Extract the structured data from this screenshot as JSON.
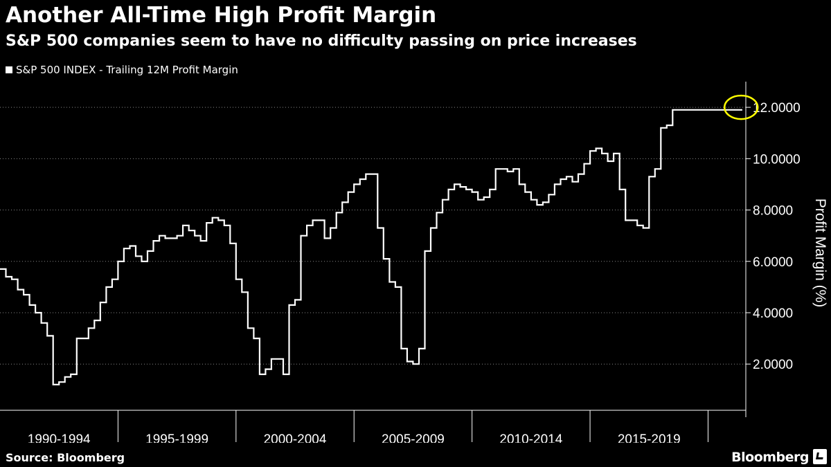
{
  "header": {
    "title": "Another All-Time High Profit Margin",
    "subtitle": "S&P 500 companies seem to have no difficulty passing on price increases"
  },
  "footer": {
    "source": "Source: Bloomberg",
    "brand": "Bloomberg"
  },
  "colors": {
    "background": "#000000",
    "line": "#ffffff",
    "highlight_circle": "#ffff00"
  },
  "chart_data": {
    "type": "line",
    "title": "Another All-Time High Profit Margin",
    "subtitle": "S&P 500 companies seem to have no difficulty passing on price increases",
    "ylabel": "Profit Margin (%)",
    "xlabel": "",
    "ylim": [
      0.2,
      13.0
    ],
    "yticks": [
      2,
      4,
      6,
      8,
      10,
      12
    ],
    "ytick_labels": [
      "2.0000",
      "4.0000",
      "6.0000",
      "8.0000",
      "10.0000",
      "12.0000"
    ],
    "xlim": [
      1990.0,
      2021.6
    ],
    "categories": [
      "1990-1994",
      "1995-1999",
      "2000-2004",
      "2005-2009",
      "2010-2014",
      "2015-2019"
    ],
    "category_bounds": [
      [
        1990,
        1995
      ],
      [
        1995,
        2000
      ],
      [
        2000,
        2005
      ],
      [
        2005,
        2010
      ],
      [
        2010,
        2015
      ],
      [
        2015,
        2020
      ]
    ],
    "annotation": {
      "type": "circle",
      "x": 2021.4,
      "y": 12.0,
      "note": "all-time high"
    },
    "grid": "horizontal-dotted",
    "legend_position": "top-left",
    "series": [
      {
        "name": "S&P 500 INDEX - Trailing 12M Profit Margin",
        "x": [
          1990.0,
          1990.25,
          1990.5,
          1990.75,
          1991.0,
          1991.25,
          1991.5,
          1991.75,
          1992.0,
          1992.25,
          1992.5,
          1992.75,
          1993.0,
          1993.25,
          1993.5,
          1993.75,
          1994.0,
          1994.25,
          1994.5,
          1994.75,
          1995.0,
          1995.25,
          1995.5,
          1995.75,
          1996.0,
          1996.25,
          1996.5,
          1996.75,
          1997.0,
          1997.25,
          1997.5,
          1997.75,
          1998.0,
          1998.25,
          1998.5,
          1998.75,
          1999.0,
          1999.25,
          1999.5,
          1999.75,
          2000.0,
          2000.25,
          2000.5,
          2000.75,
          2001.0,
          2001.25,
          2001.5,
          2001.75,
          2002.0,
          2002.25,
          2002.5,
          2002.75,
          2003.0,
          2003.25,
          2003.5,
          2003.75,
          2004.0,
          2004.25,
          2004.5,
          2004.75,
          2005.0,
          2005.25,
          2005.5,
          2005.75,
          2006.0,
          2006.25,
          2006.5,
          2006.75,
          2007.0,
          2007.25,
          2007.5,
          2007.75,
          2008.0,
          2008.25,
          2008.5,
          2008.75,
          2009.0,
          2009.25,
          2009.5,
          2009.75,
          2010.0,
          2010.25,
          2010.5,
          2010.75,
          2011.0,
          2011.25,
          2011.5,
          2011.75,
          2012.0,
          2012.25,
          2012.5,
          2012.75,
          2013.0,
          2013.25,
          2013.5,
          2013.75,
          2014.0,
          2014.25,
          2014.5,
          2014.75,
          2015.0,
          2015.25,
          2015.5,
          2015.75,
          2016.0,
          2016.25,
          2016.5,
          2016.75,
          2017.0,
          2017.25,
          2017.5,
          2017.75,
          2018.0,
          2018.25,
          2018.5,
          2018.75,
          2019.0,
          2019.25,
          2019.5,
          2019.75,
          2020.0,
          2020.25,
          2020.5,
          2020.75,
          2021.0,
          2021.25,
          2021.45
        ],
        "y": [
          5.7,
          5.4,
          5.3,
          4.9,
          4.7,
          4.3,
          4.0,
          3.6,
          3.1,
          1.2,
          1.3,
          1.5,
          1.6,
          3.0,
          3.0,
          3.4,
          3.7,
          4.4,
          5.0,
          5.3,
          6.0,
          6.5,
          6.6,
          6.2,
          6.0,
          6.4,
          6.8,
          7.0,
          6.9,
          6.9,
          7.0,
          7.4,
          7.2,
          7.0,
          6.8,
          7.5,
          7.7,
          7.6,
          7.4,
          6.7,
          5.3,
          4.8,
          3.4,
          3.0,
          1.6,
          1.8,
          2.2,
          2.2,
          1.6,
          4.3,
          4.5,
          7.0,
          7.4,
          7.6,
          7.6,
          6.9,
          7.3,
          7.9,
          8.3,
          8.7,
          9.0,
          9.2,
          9.4,
          9.4,
          7.3,
          6.1,
          5.2,
          5.0,
          2.6,
          2.1,
          2.0,
          2.6,
          6.4,
          7.3,
          7.9,
          8.4,
          8.8,
          9.0,
          8.9,
          8.8,
          8.7,
          8.4,
          8.5,
          8.8,
          9.6,
          9.6,
          9.5,
          9.6,
          9.0,
          8.7,
          8.4,
          8.2,
          8.3,
          8.6,
          9.0,
          9.2,
          9.3,
          9.1,
          9.4,
          9.8,
          10.3,
          10.4,
          10.2,
          9.9,
          10.2,
          8.8,
          7.6,
          7.6,
          7.4,
          7.3,
          9.3,
          9.6,
          11.2,
          11.3,
          11.9,
          11.9,
          11.9,
          11.9,
          11.9,
          11.9,
          11.9,
          11.9,
          11.9,
          11.9,
          11.9,
          11.9,
          11.9
        ]
      }
    ]
  }
}
